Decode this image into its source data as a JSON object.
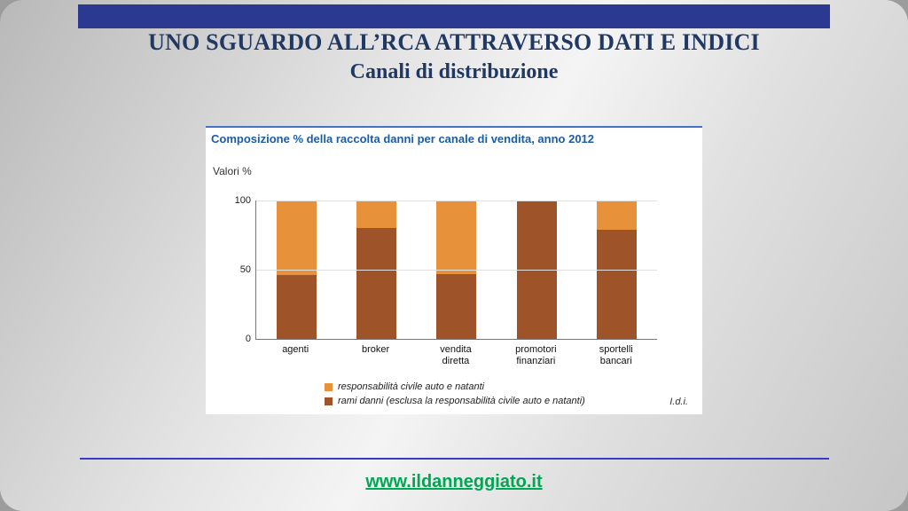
{
  "slide": {
    "title_line1": "UNO SGUARDO ALL’RCA ATTRAVERSO DATI E INDICI",
    "title_line2": "Canali di distribuzione",
    "footer_link": "www.ildanneggiato.it"
  },
  "colors": {
    "top_bar": "#2b3990",
    "title_text": "#1f3864",
    "chart_title": "#1a5da6",
    "divider": "#3a3ac4",
    "footer_link": "#00a651",
    "orange": "#e8913b",
    "brown": "#9e5328"
  },
  "chart_data": {
    "type": "bar",
    "stacked": true,
    "title": "Composizione % della raccolta danni per canale di vendita, anno 2012",
    "ylabel": "Valori %",
    "xlabel": "",
    "ylim": [
      0,
      100
    ],
    "yticks": [
      0,
      50,
      100
    ],
    "grid": true,
    "legend_position": "bottom",
    "categories": [
      "agenti",
      "broker",
      "vendita diretta",
      "promotori finanziari",
      "sportelli bancari"
    ],
    "series": [
      {
        "name": "responsabilità civile auto e natanti",
        "color": "#e8913b",
        "values": [
          54,
          20,
          53,
          0,
          21
        ]
      },
      {
        "name": "rami danni (esclusa la responsabilità civile auto e natanti)",
        "color": "#9e5328",
        "values": [
          46,
          80,
          47,
          100,
          79
        ]
      }
    ],
    "source": "I.d.i."
  }
}
